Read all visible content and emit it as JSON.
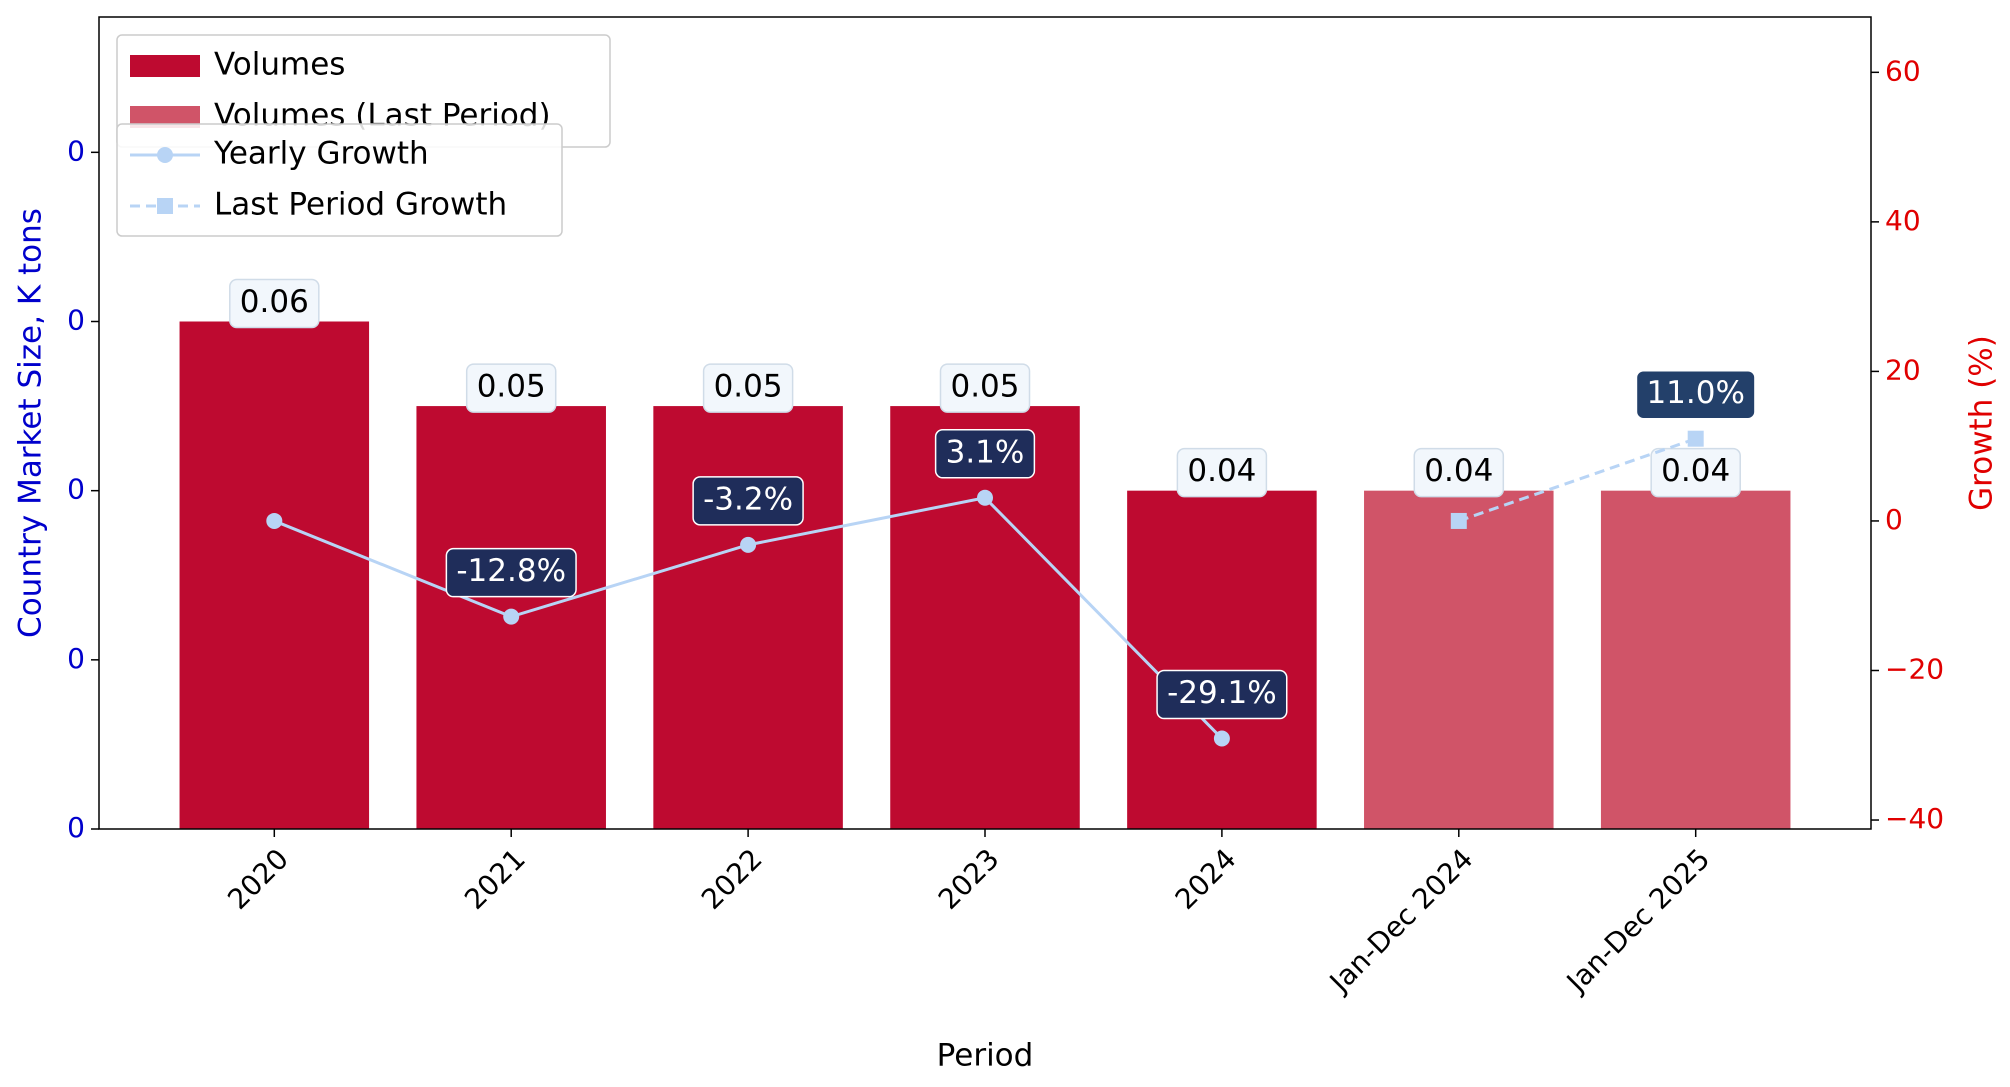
{
  "chart_data": {
    "type": "bar_line",
    "categories": [
      "2020",
      "2021",
      "2022",
      "2023",
      "2024",
      "Jan-Dec 2024",
      "Jan-Dec 2025"
    ],
    "xlabel": "Period",
    "ylabel": "Country Market Size, K tons",
    "y2label": "Growth (%)",
    "ylim": [
      0,
      0.096
    ],
    "yticks": [
      0,
      {
        "value": 0.02,
        "label": "0"
      },
      {
        "value": 0.04,
        "label": "0"
      },
      {
        "value": 0.06,
        "label": "0"
      },
      {
        "value": 0.08,
        "label": "0"
      }
    ],
    "y2lim": [
      -41.2,
      67.4
    ],
    "y2ticks": [
      -40,
      -20,
      0,
      20,
      40,
      60
    ],
    "legend": "upper left",
    "bars": [
      {
        "name": "Volumes",
        "color": "#be0a30",
        "values": [
          0.06,
          0.05,
          0.05,
          0.05,
          0.04,
          null,
          null
        ]
      },
      {
        "name": "Volumes (Last Period)",
        "color": "#d05468",
        "values": [
          null,
          null,
          null,
          null,
          null,
          0.04,
          0.04
        ]
      }
    ],
    "series": [
      {
        "name": "Yearly Growth",
        "color": "#b8d4f5",
        "axis": "y2",
        "marker": "circle",
        "dash": false,
        "values": [
          0,
          -12.8,
          -3.2,
          3.1,
          -29.1,
          null,
          null
        ],
        "value_labels": [
          null,
          "-12.8%",
          "-3.2%",
          "3.1%",
          "-29.1%",
          null,
          null
        ]
      },
      {
        "name": "Last Period Growth",
        "color": "#b8d4f5",
        "axis": "y2",
        "marker": "square",
        "dash": true,
        "values": [
          null,
          null,
          null,
          null,
          null,
          0,
          11.0
        ],
        "value_labels": [
          null,
          null,
          null,
          null,
          null,
          null,
          "11.0%"
        ]
      }
    ]
  }
}
